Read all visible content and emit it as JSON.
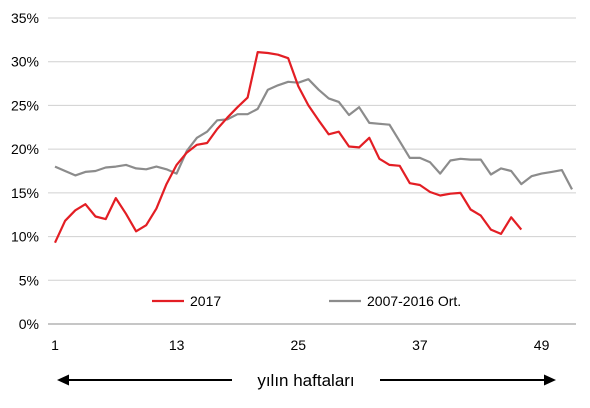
{
  "chart_data": {
    "type": "line",
    "xlabel": "yılın haftaları",
    "ylabel": "",
    "title": "",
    "xlim": [
      1,
      52
    ],
    "ylim": [
      0,
      35
    ],
    "x_ticks": [
      1,
      13,
      25,
      37,
      49
    ],
    "y_ticks": [
      0,
      5,
      10,
      15,
      20,
      25,
      30,
      35
    ],
    "y_tick_labels": [
      "0%",
      "5%",
      "10%",
      "15%",
      "20%",
      "25%",
      "30%",
      "35%"
    ],
    "grid": "horizontal",
    "legend_position": "bottom",
    "series": [
      {
        "name": "2017",
        "color": "#e31e24",
        "x": [
          1,
          2,
          3,
          4,
          5,
          6,
          7,
          8,
          9,
          10,
          11,
          12,
          13,
          14,
          15,
          16,
          17,
          18,
          19,
          20,
          21,
          22,
          23,
          24,
          25,
          26,
          27,
          28,
          29,
          30,
          31,
          32,
          33,
          34,
          35,
          36,
          37,
          38,
          39,
          40,
          41,
          42,
          43,
          44,
          45,
          46,
          47
        ],
        "values": [
          9.3,
          11.8,
          13.0,
          13.7,
          12.3,
          12.0,
          14.4,
          12.6,
          10.6,
          11.3,
          13.2,
          16.0,
          18.2,
          19.6,
          20.5,
          20.7,
          22.3,
          23.6,
          24.8,
          25.9,
          31.1,
          31.0,
          30.8,
          30.4,
          27.2,
          25.0,
          23.3,
          21.7,
          22.0,
          20.3,
          20.2,
          21.3,
          18.9,
          18.2,
          18.1,
          16.1,
          15.9,
          15.1,
          14.7,
          14.9,
          15.0,
          13.1,
          12.4,
          10.8,
          10.3,
          12.2,
          10.8
        ]
      },
      {
        "name": "2007-2016 Ort.",
        "color": "#8c8c8c",
        "x": [
          1,
          2,
          3,
          4,
          5,
          6,
          7,
          8,
          9,
          10,
          11,
          12,
          13,
          14,
          15,
          16,
          17,
          18,
          19,
          20,
          21,
          22,
          23,
          24,
          25,
          26,
          27,
          28,
          29,
          30,
          31,
          32,
          33,
          34,
          35,
          36,
          37,
          38,
          39,
          40,
          41,
          42,
          43,
          44,
          45,
          46,
          47,
          48,
          49,
          50,
          51,
          52
        ],
        "values": [
          18.0,
          17.5,
          17.0,
          17.4,
          17.5,
          17.9,
          18.0,
          18.2,
          17.8,
          17.7,
          18.0,
          17.7,
          17.2,
          19.8,
          21.3,
          22.0,
          23.3,
          23.4,
          24.0,
          24.0,
          24.6,
          26.8,
          27.3,
          27.7,
          27.6,
          28.0,
          26.8,
          25.8,
          25.4,
          23.9,
          24.8,
          23.0,
          22.9,
          22.8,
          20.9,
          19.0,
          19.0,
          18.5,
          17.2,
          18.7,
          18.9,
          18.8,
          18.8,
          17.1,
          17.8,
          17.5,
          16.0,
          16.9,
          17.2,
          17.4,
          17.6,
          15.4
        ]
      }
    ]
  }
}
